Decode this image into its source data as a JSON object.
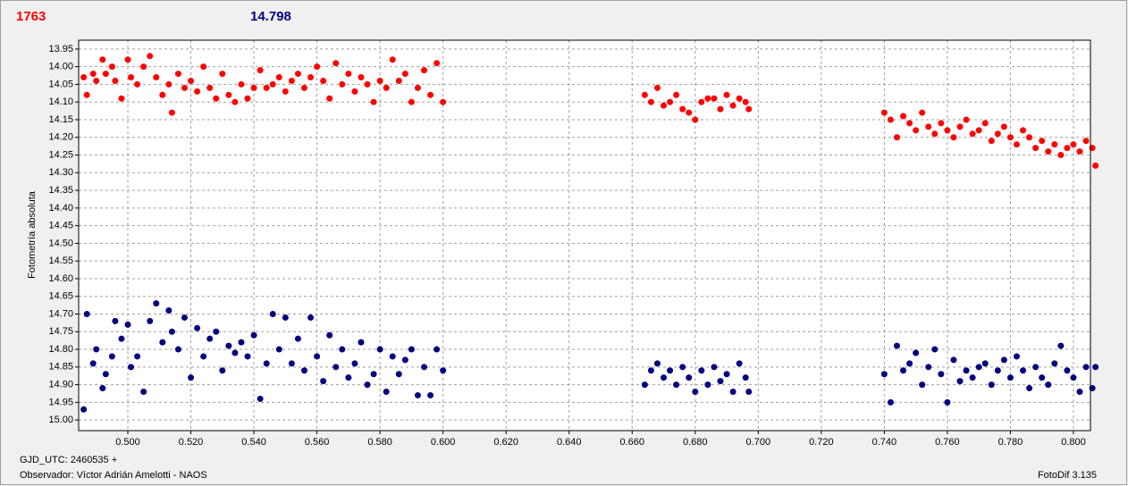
{
  "chart_data": {
    "type": "scatter",
    "header_left": "1763",
    "header_left_color": "#ff0000",
    "header_right": "14.798",
    "header_right_color": "#000080",
    "ylabel": "Fotometría absoluta",
    "xlabel": "GJD_UTC: 2460535 +",
    "footer_left": "Observador: Víctor Adrián Amelotti - NAOS",
    "footer_right": "FotoDif 3.135",
    "grid": true,
    "y_inverted": true,
    "xlim": [
      0.4844,
      0.8054
    ],
    "ylim": [
      13.925,
      15.03
    ],
    "xticks": [
      {
        "value": 0.5,
        "label": "0.500"
      },
      {
        "value": 0.52,
        "label": "0.520"
      },
      {
        "value": 0.54,
        "label": "0.540"
      },
      {
        "value": 0.56,
        "label": "0.560"
      },
      {
        "value": 0.58,
        "label": "0.580"
      },
      {
        "value": 0.6,
        "label": "0.600"
      },
      {
        "value": 0.62,
        "label": "0.620"
      },
      {
        "value": 0.64,
        "label": "0.640"
      },
      {
        "value": 0.66,
        "label": "0.660"
      },
      {
        "value": 0.68,
        "label": "0.680"
      },
      {
        "value": 0.7,
        "label": "0.700"
      },
      {
        "value": 0.72,
        "label": "0.720"
      },
      {
        "value": 0.74,
        "label": "0.740"
      },
      {
        "value": 0.76,
        "label": "0.760"
      },
      {
        "value": 0.78,
        "label": "0.780"
      },
      {
        "value": 0.8,
        "label": "0.800"
      }
    ],
    "yticks": [
      13.95,
      {
        "value": 14.0,
        "label": "14.00"
      },
      14.05,
      {
        "value": 14.1,
        "label": "14.10"
      },
      14.15,
      {
        "value": 14.2,
        "label": "14.20"
      },
      14.25,
      {
        "value": 14.3,
        "label": "14.30"
      },
      14.35,
      {
        "value": 14.4,
        "label": "14.40"
      },
      14.45,
      {
        "value": 14.5,
        "label": "14.50"
      },
      14.55,
      {
        "value": 14.6,
        "label": "14.60"
      },
      14.65,
      {
        "value": 14.7,
        "label": "14.70"
      },
      14.75,
      {
        "value": 14.8,
        "label": "14.80"
      },
      14.85,
      {
        "value": 14.9,
        "label": "14.90"
      },
      14.95,
      {
        "value": 15.0,
        "label": "15.00"
      }
    ],
    "x": [
      0.486,
      0.487,
      0.489,
      0.49,
      0.492,
      0.493,
      0.495,
      0.496,
      0.498,
      0.5,
      0.501,
      0.503,
      0.505,
      0.507,
      0.509,
      0.511,
      0.513,
      0.514,
      0.516,
      0.518,
      0.52,
      0.522,
      0.524,
      0.526,
      0.528,
      0.53,
      0.532,
      0.534,
      0.536,
      0.538,
      0.54,
      0.542,
      0.544,
      0.546,
      0.548,
      0.55,
      0.552,
      0.554,
      0.556,
      0.558,
      0.56,
      0.562,
      0.564,
      0.566,
      0.568,
      0.57,
      0.572,
      0.574,
      0.576,
      0.578,
      0.58,
      0.582,
      0.584,
      0.586,
      0.588,
      0.59,
      0.592,
      0.594,
      0.596,
      0.598,
      0.6,
      0.664,
      0.666,
      0.668,
      0.67,
      0.672,
      0.674,
      0.676,
      0.678,
      0.68,
      0.682,
      0.684,
      0.686,
      0.688,
      0.69,
      0.692,
      0.694,
      0.696,
      0.697,
      0.74,
      0.742,
      0.744,
      0.746,
      0.748,
      0.75,
      0.752,
      0.754,
      0.756,
      0.758,
      0.76,
      0.762,
      0.764,
      0.766,
      0.768,
      0.77,
      0.772,
      0.774,
      0.776,
      0.778,
      0.78,
      0.782,
      0.784,
      0.786,
      0.788,
      0.79,
      0.792,
      0.794,
      0.796,
      0.798,
      0.8,
      0.802,
      0.804,
      0.806,
      0.807
    ],
    "series": [
      {
        "color": "#ff0000",
        "values": [
          14.03,
          14.08,
          14.02,
          14.04,
          13.98,
          14.02,
          14.0,
          14.04,
          14.09,
          13.98,
          14.03,
          14.05,
          14.0,
          13.97,
          14.03,
          14.08,
          14.05,
          14.13,
          14.02,
          14.06,
          14.04,
          14.07,
          14.0,
          14.06,
          14.09,
          14.02,
          14.08,
          14.1,
          14.05,
          14.09,
          14.06,
          14.01,
          14.06,
          14.05,
          14.03,
          14.07,
          14.04,
          14.02,
          14.06,
          14.03,
          14.0,
          14.04,
          14.09,
          13.99,
          14.05,
          14.02,
          14.07,
          14.03,
          14.05,
          14.1,
          14.04,
          14.06,
          13.98,
          14.04,
          14.02,
          14.1,
          14.06,
          14.01,
          14.08,
          13.99,
          14.1,
          14.08,
          14.1,
          14.06,
          14.11,
          14.1,
          14.08,
          14.12,
          14.13,
          14.15,
          14.1,
          14.09,
          14.09,
          14.12,
          14.08,
          14.11,
          14.09,
          14.1,
          14.12,
          14.13,
          14.15,
          14.2,
          14.14,
          14.16,
          14.18,
          14.13,
          14.17,
          14.19,
          14.16,
          14.18,
          14.2,
          14.17,
          14.15,
          14.19,
          14.18,
          14.16,
          14.21,
          14.19,
          14.17,
          14.2,
          14.22,
          14.18,
          14.2,
          14.23,
          14.21,
          14.24,
          14.22,
          14.25,
          14.23,
          14.22,
          14.24,
          14.21,
          14.23,
          14.28
        ]
      },
      {
        "color": "#000080",
        "values": [
          14.97,
          14.7,
          14.84,
          14.8,
          14.91,
          14.87,
          14.82,
          14.72,
          14.77,
          14.73,
          14.85,
          14.82,
          14.92,
          14.72,
          14.67,
          14.78,
          14.69,
          14.75,
          14.8,
          14.71,
          14.88,
          14.74,
          14.82,
          14.77,
          14.75,
          14.86,
          14.79,
          14.81,
          14.78,
          14.82,
          14.76,
          14.94,
          14.84,
          14.7,
          14.8,
          14.71,
          14.84,
          14.77,
          14.86,
          14.71,
          14.82,
          14.89,
          14.76,
          14.85,
          14.8,
          14.88,
          14.84,
          14.78,
          14.9,
          14.87,
          14.8,
          14.92,
          14.82,
          14.87,
          14.83,
          14.8,
          14.93,
          14.85,
          14.93,
          14.8,
          14.86,
          14.9,
          14.86,
          14.84,
          14.88,
          14.86,
          14.9,
          14.85,
          14.88,
          14.92,
          14.86,
          14.9,
          14.85,
          14.89,
          14.87,
          14.92,
          14.84,
          14.88,
          14.92,
          14.87,
          14.95,
          14.79,
          14.86,
          14.84,
          14.81,
          14.9,
          14.85,
          14.8,
          14.87,
          14.95,
          14.83,
          14.89,
          14.86,
          14.88,
          14.85,
          14.84,
          14.9,
          14.86,
          14.83,
          14.88,
          14.82,
          14.86,
          14.91,
          14.85,
          14.88,
          14.9,
          14.84,
          14.79,
          14.86,
          14.88,
          14.92,
          14.85,
          14.91,
          14.85
        ]
      }
    ]
  }
}
